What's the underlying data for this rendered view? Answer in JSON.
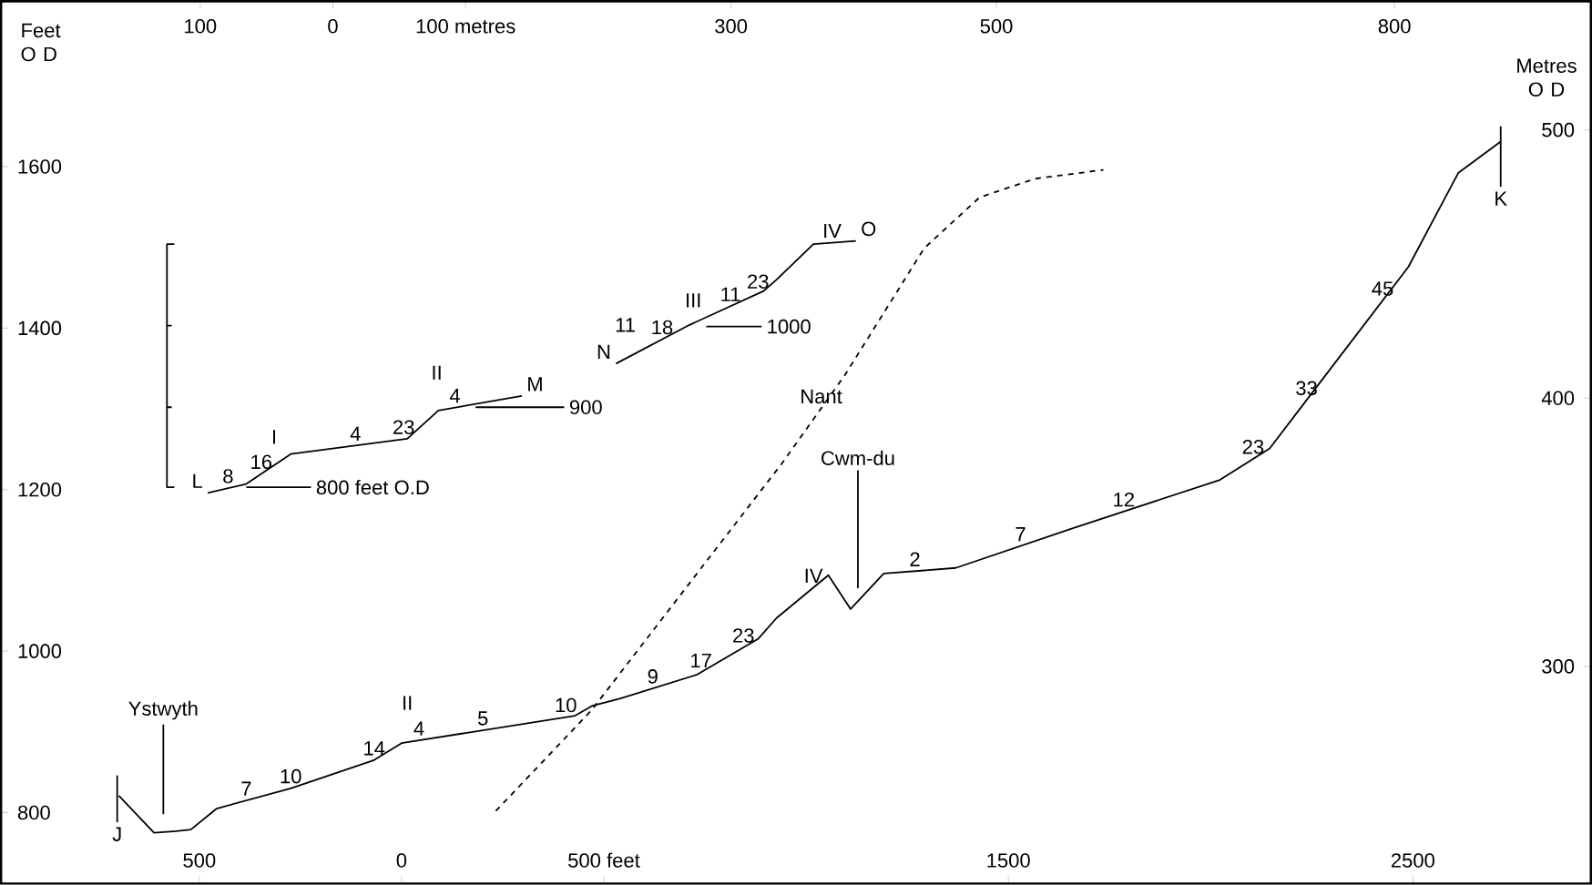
{
  "chart_data": {
    "type": "line",
    "xlim": [
      -990,
      2940
    ],
    "ylim": [
      712,
      1805
    ],
    "x2lim": [
      -250,
      948
    ],
    "y2lim": [
      219,
      548
    ],
    "xticks": [
      {
        "value": -500,
        "label": "500"
      },
      0,
      {
        "value": 500,
        "label": "500 feet"
      },
      1500,
      2500
    ],
    "x2ticks": [
      {
        "value": -100,
        "label": "100"
      },
      0,
      {
        "value": 100,
        "label": "100 metres"
      },
      300,
      500,
      800
    ],
    "yticks": [
      800,
      1000,
      1200,
      1400,
      1600
    ],
    "y2ticks": [
      300,
      400,
      500
    ],
    "ylabel": "Feet O D",
    "y2label": "Metres O D",
    "series": [
      {
        "color": "#000000",
        "line_style": "solid",
        "x": [
          -699,
          -612,
          -557,
          -521,
          -457,
          -274,
          -68,
          0,
          429,
          470,
          539,
          731,
          881,
          927,
          1055,
          1110,
          1192,
          1370,
          1658,
          2023,
          2146,
          2242,
          2489,
          2612,
          2717
        ],
        "values": [
          821,
          775,
          777,
          779,
          805,
          830,
          865,
          886,
          920,
          932,
          941,
          971,
          1015,
          1041,
          1094,
          1052,
          1096,
          1103,
          1152,
          1212,
          1251,
          1314,
          1476,
          1592,
          1631
        ]
      },
      {
        "color": "#000000",
        "line_style": "dashed",
        "x": [
          233,
          470,
          941,
          1096,
          1292,
          1429,
          1566,
          1735
        ],
        "values": [
          802,
          927,
          1233,
          1342,
          1499,
          1562,
          1585,
          1596
        ]
      },
      {
        "color": "#000000",
        "line_style": "solid",
        "x": [
          -479,
          -384,
          -274,
          14,
          91,
          297
        ],
        "values": [
          1196,
          1207,
          1244,
          1263,
          1298,
          1316
        ]
      },
      {
        "color": "#000000",
        "line_style": "solid",
        "x": [
          530,
          712,
          895,
          927,
          1018,
          1123
        ],
        "values": [
          1356,
          1404,
          1446,
          1460,
          1504,
          1508
        ]
      },
      {
        "color": "#000000",
        "line_style": "solid",
        "x": [
          -384,
          -224
        ],
        "values": [
          1203,
          1203
        ]
      },
      {
        "color": "#000000",
        "line_style": "solid",
        "x": [
          183,
          402
        ],
        "values": [
          1302,
          1302
        ]
      },
      {
        "color": "#000000",
        "line_style": "solid",
        "x": [
          753,
          890
        ],
        "values": [
          1402,
          1402
        ]
      },
      {
        "color": "#000000",
        "line_style": "solid",
        "x": [
          -562,
          -580,
          -580,
          -570,
          -580,
          -580,
          -570,
          -580,
          -580,
          -562
        ],
        "values": [
          1504,
          1504,
          1403,
          1403,
          1403,
          1302,
          1302,
          1302,
          1203,
          1203
        ]
      },
      {
        "color": "#000000",
        "line_style": "solid",
        "x": [
          -703,
          -703
        ],
        "values": [
          846,
          788
        ]
      },
      {
        "color": "#000000",
        "line_style": "solid",
        "x": [
          -589,
          -589
        ],
        "values": [
          909,
          798
        ]
      },
      {
        "color": "#000000",
        "line_style": "solid",
        "x": [
          1128,
          1128
        ],
        "values": [
          1224,
          1078
        ]
      },
      {
        "color": "#000000",
        "line_style": "solid",
        "x": [
          2717,
          2717
        ],
        "values": [
          1650,
          1575
        ]
      }
    ],
    "annotations": [
      {
        "text": "Ystwyth",
        "x": -589,
        "y": 909
      },
      {
        "text": "J",
        "x": -703,
        "y": 788
      },
      {
        "text": "7",
        "x": -384,
        "y": 815
      },
      {
        "text": "10",
        "x": -274,
        "y": 830
      },
      {
        "text": "14",
        "x": -68,
        "y": 865
      },
      {
        "text": "4",
        "x": 43,
        "y": 889.4
      },
      {
        "text": "5",
        "x": 201,
        "y": 901.9
      },
      {
        "text": "10",
        "x": 406,
        "y": 918.2
      },
      {
        "text": "9",
        "x": 621,
        "y": 953.8
      },
      {
        "text": "17",
        "x": 740,
        "y": 973.6
      },
      {
        "text": "23",
        "x": 845,
        "y": 1004.4
      },
      {
        "text": "II",
        "x": 14,
        "y": 887.1
      },
      {
        "text": "IV",
        "x": 1018,
        "y": 1078.7
      },
      {
        "text": "Nant",
        "x": 1037,
        "y": 1300.5
      },
      {
        "text": "Cwm-du",
        "x": 1128,
        "y": 1224
      },
      {
        "text": "2",
        "x": 1269,
        "y": 1099
      },
      {
        "text": "7",
        "x": 1530,
        "y": 1130.2
      },
      {
        "text": "12",
        "x": 1785,
        "y": 1172.9
      },
      {
        "text": "23",
        "x": 2105,
        "y": 1238
      },
      {
        "text": "33",
        "x": 2237,
        "y": 1310.7
      },
      {
        "text": "45",
        "x": 2425,
        "y": 1434
      },
      {
        "text": "K",
        "x": 2717,
        "y": 1575
      },
      {
        "text": "L",
        "x": -479,
        "y": 1196
      },
      {
        "text": "16",
        "x": -347,
        "y": 1219.4
      },
      {
        "text": "8",
        "x": -429,
        "y": 1201.8
      },
      {
        "text": "4",
        "x": -114,
        "y": 1254.6
      },
      {
        "text": "23",
        "x": 5,
        "y": 1262.4
      },
      {
        "text": "4",
        "x": 132,
        "y": 1301.6
      },
      {
        "text": "M",
        "x": 297,
        "y": 1316
      },
      {
        "text": "I",
        "x": -315,
        "y": 1230.2
      },
      {
        "text": "II",
        "x": 87,
        "y": 1296.2
      },
      {
        "text": "900",
        "x": 402,
        "y": 1302
      },
      {
        "text": "800 feet O.D",
        "x": -224,
        "y": 1203
      },
      {
        "text": "N",
        "x": 530,
        "y": 1356
      },
      {
        "text": "11",
        "x": 553,
        "y": 1362.1
      },
      {
        "text": "18",
        "x": 644,
        "y": 1386.1
      },
      {
        "text": "11",
        "x": 813,
        "y": 1427.2
      },
      {
        "text": "23",
        "x": 881,
        "y": 1442.8
      },
      {
        "text": "III",
        "x": 721,
        "y": 1406.1
      },
      {
        "text": "1000",
        "x": 890,
        "y": 1402
      },
      {
        "text": "IV",
        "x": 1064,
        "y": 1505.8
      },
      {
        "text": "O",
        "x": 1123,
        "y": 1508
      }
    ]
  }
}
